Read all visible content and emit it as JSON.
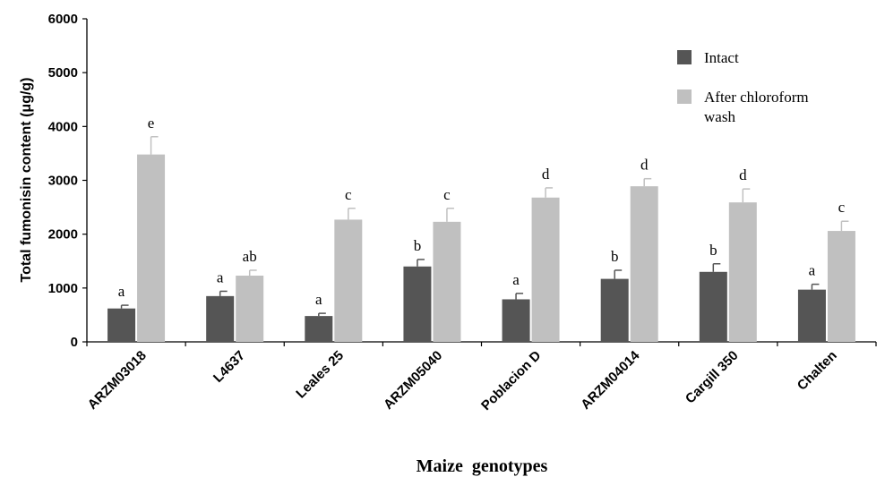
{
  "chart_data": {
    "type": "bar",
    "title": "",
    "xlabel": "Maize  genotypes",
    "ylabel": "Total fumonisin content (μg/g)",
    "ylim": [
      0,
      6000
    ],
    "yticks": [
      "0",
      "1000",
      "2000",
      "3000",
      "4000",
      "5000",
      "6000"
    ],
    "categories": [
      "ARZM03018",
      "L4637",
      "Leales 25",
      "ARZM05040",
      "Poblacion D",
      "ARZM04014",
      "Cargill 350",
      "Chalten"
    ],
    "series": [
      {
        "name": "Intact",
        "color": "#555555",
        "values": [
          620,
          850,
          480,
          1400,
          790,
          1170,
          1300,
          970
        ],
        "errors": [
          60,
          90,
          50,
          130,
          110,
          160,
          150,
          100
        ],
        "letters": [
          "a",
          "a",
          "a",
          "b",
          "a",
          "b",
          "b",
          "a"
        ]
      },
      {
        "name": "After chloroform wash",
        "color": "#c0c0c0",
        "values": [
          3480,
          1230,
          2270,
          2230,
          2680,
          2890,
          2590,
          2060
        ],
        "errors": [
          330,
          100,
          210,
          250,
          180,
          140,
          250,
          180
        ],
        "letters": [
          "e",
          "ab",
          "c",
          "c",
          "d",
          "d",
          "d",
          "c"
        ]
      }
    ],
    "legend": {
      "position": "top-right",
      "items": [
        {
          "label": "Intact"
        },
        {
          "label_lines": [
            "After chloroform",
            "wash"
          ]
        }
      ]
    },
    "grid": false
  }
}
